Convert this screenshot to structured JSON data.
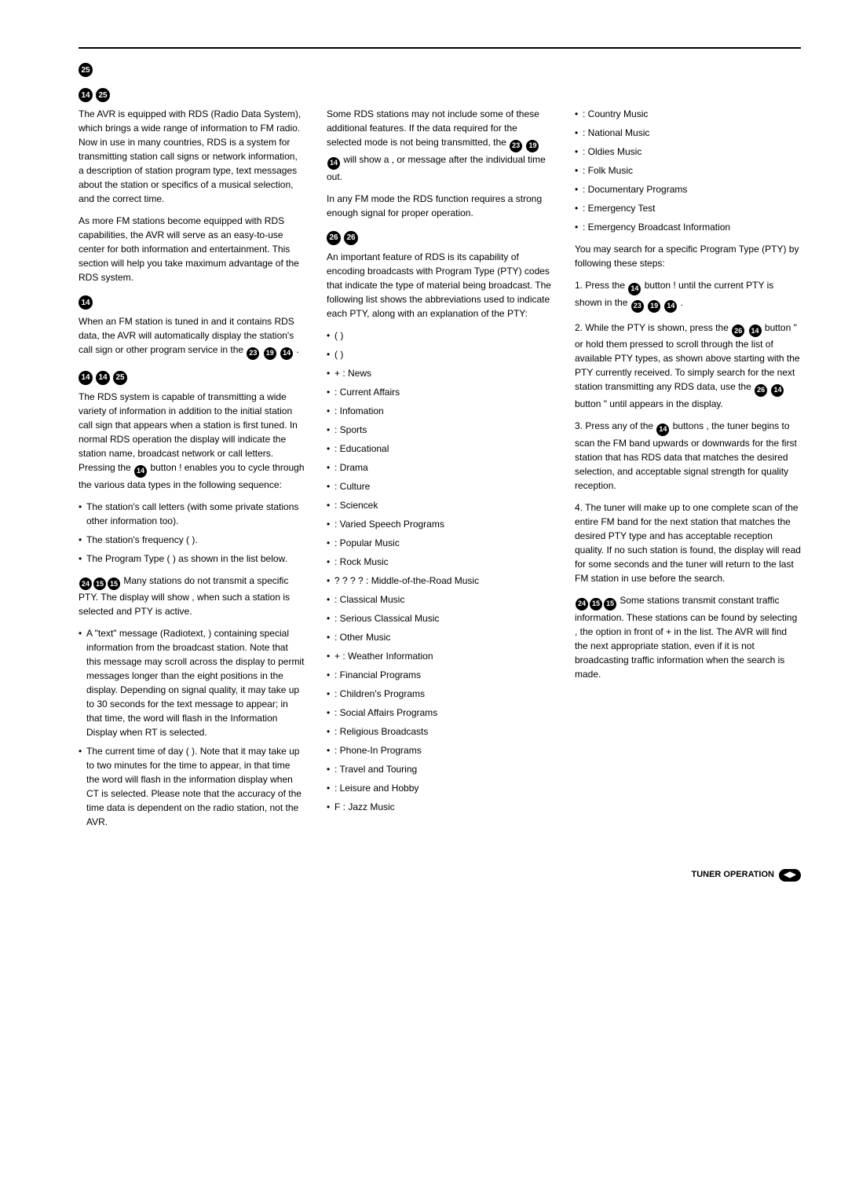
{
  "title": {
    "badge": "25"
  },
  "sub1": {
    "badge1": "14",
    "badge2": "25"
  },
  "p1": "The AVR is equipped with RDS (Radio Data System), which brings a wide range of information to FM radio. Now in use in many countries, RDS is a system for transmitting station call signs or network information, a description of station program type, text messages about the station or specifics of a musical selection, and the correct time.",
  "p2": "As more FM stations become equipped with RDS capabilities, the AVR will serve as an easy-to-use center for both information and entertainment. This section will help you take maximum advantage of the RDS system.",
  "sub2": {
    "badge": "14"
  },
  "p3a": "When an FM station is tuned in and it contains RDS data, the AVR will automatically display the station's call sign or other program service in the",
  "p3b": ".",
  "sub3": {
    "badge1": "14",
    "badge2": "14",
    "badge3": "25"
  },
  "p4a": "The RDS system is capable of transmitting a wide variety of information in addition to the initial station call sign that appears when a station is first tuned. In normal RDS operation the display will indicate the station name, broadcast network or call letters. Pressing the",
  "p4b": "button ! enables you to cycle through the various data types in the following sequence:",
  "bullets1": [
    "The station's call letters (with some private stations other information too).",
    "The station's frequency ( ).",
    "The Program Type ( ) as shown in the list below."
  ],
  "note1a": "Many stations do not transmit a specific PTY. The display will show , when such a station is selected and PTY is active.",
  "bullets2": [
    "A \"text\" message (Radiotext, ) containing special information from the broadcast station. Note that this message may scroll across the display to permit messages longer than the eight positions in the display. Depending on signal quality, it may take up to 30 seconds for the text message to appear; in that time, the word will flash in the Information Display when RT is selected.",
    "The current time of day ( ). Note that it may take up to two minutes for the time to appear, in that time the word will flash in the information display when CT is selected. Please note that the accuracy of the time data is dependent on the radio station, not the AVR."
  ],
  "p5a": "Some RDS stations may not include some of these additional features. If the data required for the selected mode is not being transmitted, the",
  "p5b": "will show a , or message after the individual time out.",
  "p6": "In any FM mode the RDS function requires a strong enough signal for proper operation.",
  "sub4": {
    "badge1": "26",
    "badge2": "26"
  },
  "p7": "An important feature of RDS is its capability of encoding broadcasts with Program Type (PTY) codes that indicate the type of material being broadcast. The following list shows the abbreviations used to indicate each PTY, along with an explanation of the PTY:",
  "ptyList": [
    "( )",
    "( )",
    "+ : News",
    ": Current Affairs",
    ": Infomation",
    ": Sports",
    ": Educational",
    ": Drama",
    ": Culture",
    ": Sciencek",
    ": Varied Speech Programs",
    ": Popular Music",
    ": Rock Music",
    "? ? ? ?  : Middle-of-the-Road Music",
    ": Classical Music",
    ": Serious Classical Music",
    ": Other Music",
    "+ : Weather Information",
    ": Financial Programs",
    ": Children's Programs",
    ": Social Affairs Programs",
    ": Religious Broadcasts",
    ": Phone-In Programs",
    ": Travel and Touring",
    ": Leisure and Hobby",
    "F : Jazz Music"
  ],
  "ptyList2": [
    ": Country Music",
    ": National Music",
    ": Oldies Music",
    ": Folk Music",
    ": Documentary Programs",
    ": Emergency Test",
    ": Emergency Broadcast Information"
  ],
  "p8": "You may search for a specific Program Type (PTY) by following these steps:",
  "step1a": "1. Press the",
  "step1b": "button ! until the current PTY is shown in the",
  "step1c": ".",
  "step2a": "2. While the PTY is shown, press the",
  "step2b": "button \" or hold them pressed to scroll through the list of available PTY types, as shown above starting with the PTY currently received. To simply search for the next station transmitting any RDS data, use the",
  "step2c": "button \" until appears in the display.",
  "step3a": "3. Press any of the",
  "step3b": "buttons , the tuner begins to scan the FM band upwards or downwards for the first station that has RDS data that matches the desired selection, and acceptable signal strength for quality reception.",
  "step4": "4. The tuner will make up to one complete scan of the entire FM band for the next station that matches the desired PTY type and has acceptable reception quality. If no such station is found, the display will read for some seconds and the tuner will return to the last FM station in use before the search.",
  "note2": "Some stations transmit constant traffic information. These stations can be found by selecting , the option in front of + in the list. The AVR will find the next appropriate station, even if it is not broadcasting traffic information when the search is made.",
  "footer": "TUNER OPERATION",
  "footerPage": "◀▶"
}
